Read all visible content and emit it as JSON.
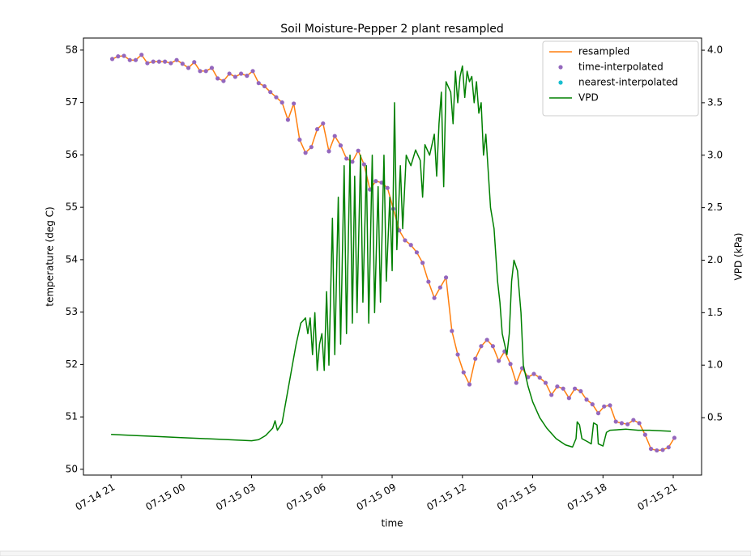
{
  "chart_data": {
    "type": "line",
    "title": "Soil Moisture-Pepper 2 plant resampled",
    "xlabel": "time",
    "ylabel": "temperature (deg C)",
    "y2label": "VPD (kPa)",
    "xlim": [
      -1.18,
      25.21
    ],
    "ylim": [
      49.89,
      58.23
    ],
    "y2lim": [
      -0.047,
      4.116
    ],
    "xticks": [
      {
        "value": 0,
        "label": "07-14 21"
      },
      {
        "value": 3,
        "label": "07-15 00"
      },
      {
        "value": 6,
        "label": "07-15 03"
      },
      {
        "value": 9,
        "label": "07-15 06"
      },
      {
        "value": 12,
        "label": "07-15 09"
      },
      {
        "value": 15,
        "label": "07-15 12"
      },
      {
        "value": 18,
        "label": "07-15 15"
      },
      {
        "value": 21,
        "label": "07-15 18"
      },
      {
        "value": 24,
        "label": "07-15 21"
      }
    ],
    "yticks": [
      50,
      51,
      52,
      53,
      54,
      55,
      56,
      57,
      58
    ],
    "y2ticks": [
      0.5,
      {
        "value": 1,
        "label": "1.0"
      },
      1.5,
      {
        "value": 2,
        "label": "2.0"
      },
      2.5,
      {
        "value": 3,
        "label": "3.0"
      },
      3.5,
      {
        "value": 4,
        "label": "4.0"
      }
    ],
    "legend": "upper right",
    "x": [
      0.05,
      0.3,
      0.55,
      0.8,
      1.05,
      1.3,
      1.55,
      1.8,
      2.05,
      2.3,
      2.55,
      2.8,
      3.05,
      3.3,
      3.55,
      3.8,
      4.05,
      4.3,
      4.55,
      4.8,
      5.05,
      5.3,
      5.55,
      5.8,
      6.05,
      6.3,
      6.55,
      6.8,
      7.05,
      7.3,
      7.55,
      7.8,
      8.05,
      8.3,
      8.55,
      8.8,
      9.05,
      9.3,
      9.55,
      9.8,
      10.05,
      10.3,
      10.55,
      10.8,
      11.05,
      11.3,
      11.55,
      11.8,
      12.05,
      12.3,
      12.55,
      12.8,
      13.05,
      13.3,
      13.55,
      13.8,
      14.05,
      14.3,
      14.55,
      14.8,
      15.05,
      15.3,
      15.55,
      15.8,
      16.05,
      16.3,
      16.55,
      16.8,
      17.05,
      17.3,
      17.55,
      17.8,
      18.05,
      18.3,
      18.55,
      18.8,
      19.05,
      19.3,
      19.55,
      19.8,
      20.05,
      20.3,
      20.55,
      20.8,
      21.05,
      21.3,
      21.55,
      21.8,
      22.05,
      22.3,
      22.55,
      22.8,
      23.05,
      23.3,
      23.55,
      23.8,
      24.05
    ],
    "series": [
      {
        "name": "resampled",
        "kind": "line",
        "color": "#ff7f0e",
        "values": [
          57.83,
          57.88,
          57.89,
          57.81,
          57.81,
          57.91,
          57.75,
          57.78,
          57.78,
          57.78,
          57.75,
          57.81,
          57.74,
          57.66,
          57.77,
          57.6,
          57.6,
          57.66,
          57.46,
          57.41,
          57.55,
          57.49,
          57.55,
          57.51,
          57.6,
          57.37,
          57.31,
          57.2,
          57.1,
          57.0,
          56.67,
          56.98,
          56.29,
          56.04,
          56.15,
          56.49,
          56.6,
          56.07,
          56.36,
          56.18,
          55.93,
          55.87,
          56.08,
          55.82,
          55.34,
          55.5,
          55.47,
          55.37,
          54.97,
          54.56,
          54.37,
          54.28,
          54.14,
          53.94,
          53.58,
          53.27,
          53.47,
          53.66,
          52.64,
          52.19,
          51.85,
          51.62,
          52.11,
          52.35,
          52.47,
          52.35,
          52.07,
          52.25,
          52.01,
          51.65,
          51.93,
          51.76,
          51.82,
          51.75,
          51.65,
          51.42,
          51.58,
          51.54,
          51.36,
          51.54,
          51.49,
          51.33,
          51.24,
          51.07,
          51.2,
          51.22,
          50.91,
          50.88,
          50.86,
          50.94,
          50.88,
          50.66,
          50.39,
          50.36,
          50.37,
          50.42,
          50.6
        ]
      },
      {
        "name": "time-interpolated",
        "kind": "marker",
        "color": "#9467bd",
        "values": [
          57.83,
          57.88,
          57.89,
          57.81,
          57.81,
          57.91,
          57.75,
          57.78,
          57.78,
          57.78,
          57.75,
          57.81,
          57.74,
          57.66,
          57.77,
          57.6,
          57.6,
          57.66,
          57.46,
          57.41,
          57.55,
          57.49,
          57.55,
          57.51,
          57.6,
          57.37,
          57.31,
          57.2,
          57.1,
          57.0,
          56.67,
          56.98,
          56.29,
          56.04,
          56.15,
          56.49,
          56.6,
          56.07,
          56.36,
          56.18,
          55.93,
          55.87,
          56.08,
          55.82,
          55.34,
          55.5,
          55.47,
          55.37,
          54.97,
          54.56,
          54.37,
          54.28,
          54.14,
          53.94,
          53.58,
          53.27,
          53.47,
          53.66,
          52.64,
          52.19,
          51.85,
          51.62,
          52.11,
          52.35,
          52.47,
          52.35,
          52.07,
          52.25,
          52.01,
          51.65,
          51.93,
          51.76,
          51.82,
          51.75,
          51.65,
          51.42,
          51.58,
          51.54,
          51.36,
          51.54,
          51.49,
          51.33,
          51.24,
          51.07,
          51.2,
          51.22,
          50.91,
          50.88,
          50.86,
          50.94,
          50.88,
          50.66,
          50.39,
          50.36,
          50.37,
          50.42,
          50.6
        ]
      },
      {
        "name": "nearest-interpolated",
        "kind": "marker",
        "color": "#17becf",
        "values": [
          null,
          null,
          null,
          null,
          null,
          null,
          null,
          null,
          null,
          null,
          null,
          null,
          null,
          null,
          null,
          null,
          null,
          null,
          null,
          null,
          null,
          null,
          null,
          null,
          null,
          null,
          null,
          null,
          null,
          null,
          null,
          null,
          null,
          null,
          null,
          null,
          null,
          null,
          null,
          null,
          null,
          null,
          null,
          null,
          null,
          null,
          null,
          null,
          null,
          null,
          null,
          null,
          null,
          null,
          null,
          null,
          null,
          null,
          null,
          null,
          null,
          null,
          null,
          null,
          null,
          null,
          null,
          null,
          null,
          null,
          null,
          null,
          null,
          null,
          null,
          null,
          null,
          null,
          null,
          null,
          null,
          null,
          null,
          null,
          null,
          null,
          null,
          null,
          null,
          null,
          null,
          null,
          null,
          null,
          null,
          null,
          null
        ]
      },
      {
        "name": "VPD",
        "kind": "line",
        "axis": "y2",
        "color": "#008000",
        "x": [
          0,
          1,
          2,
          3,
          4,
          5,
          6,
          6.3,
          6.6,
          6.9,
          7.0,
          7.1,
          7.3,
          7.5,
          7.7,
          7.9,
          8.1,
          8.3,
          8.4,
          8.5,
          8.6,
          8.7,
          8.8,
          8.9,
          9.0,
          9.1,
          9.2,
          9.3,
          9.45,
          9.55,
          9.7,
          9.8,
          9.95,
          10.05,
          10.2,
          10.3,
          10.4,
          10.5,
          10.65,
          10.75,
          10.9,
          11.0,
          11.15,
          11.25,
          11.4,
          11.5,
          11.65,
          11.75,
          11.9,
          12.0,
          12.1,
          12.2,
          12.35,
          12.45,
          12.6,
          12.8,
          13.0,
          13.2,
          13.3,
          13.4,
          13.6,
          13.8,
          13.9,
          14.0,
          14.1,
          14.2,
          14.3,
          14.5,
          14.6,
          14.7,
          14.8,
          14.9,
          15.0,
          15.1,
          15.2,
          15.3,
          15.4,
          15.5,
          15.6,
          15.7,
          15.8,
          15.9,
          16.0,
          16.2,
          16.35,
          16.5,
          16.6,
          16.7,
          16.8,
          16.9,
          17.0,
          17.1,
          17.2,
          17.35,
          17.5,
          17.6,
          17.8,
          18.0,
          18.3,
          18.6,
          19.0,
          19.4,
          19.7,
          19.85,
          19.9,
          20.0,
          20.1,
          20.35,
          20.5,
          20.6,
          20.75,
          20.8,
          21.0,
          21.15,
          21.3,
          22.0,
          22.5,
          23.0,
          23.9
        ],
        "values": [
          0.34,
          0.33,
          0.32,
          0.31,
          0.3,
          0.29,
          0.28,
          0.29,
          0.33,
          0.4,
          0.47,
          0.38,
          0.45,
          0.7,
          0.95,
          1.2,
          1.4,
          1.45,
          1.3,
          1.45,
          1.1,
          1.5,
          0.95,
          1.2,
          1.3,
          0.95,
          1.7,
          1.0,
          2.4,
          1.1,
          2.6,
          1.2,
          2.9,
          1.3,
          3.0,
          1.4,
          2.8,
          1.5,
          3.0,
          1.6,
          2.9,
          1.4,
          3.0,
          1.5,
          2.7,
          1.6,
          3.0,
          1.8,
          2.6,
          1.9,
          3.5,
          2.1,
          2.9,
          2.3,
          3.0,
          2.9,
          3.05,
          2.95,
          2.6,
          3.1,
          3.0,
          3.2,
          2.8,
          3.3,
          3.6,
          2.7,
          3.7,
          3.6,
          3.3,
          3.8,
          3.5,
          3.75,
          3.85,
          3.55,
          3.8,
          3.7,
          3.75,
          3.5,
          3.7,
          3.4,
          3.5,
          3.0,
          3.2,
          2.5,
          2.3,
          1.8,
          1.6,
          1.3,
          1.2,
          1.1,
          1.3,
          1.8,
          2.0,
          1.9,
          1.5,
          1.0,
          0.8,
          0.65,
          0.5,
          0.4,
          0.3,
          0.24,
          0.22,
          0.3,
          0.46,
          0.43,
          0.3,
          0.27,
          0.25,
          0.45,
          0.43,
          0.25,
          0.23,
          0.36,
          0.38,
          0.39,
          0.38,
          0.38,
          0.37
        ]
      }
    ]
  }
}
